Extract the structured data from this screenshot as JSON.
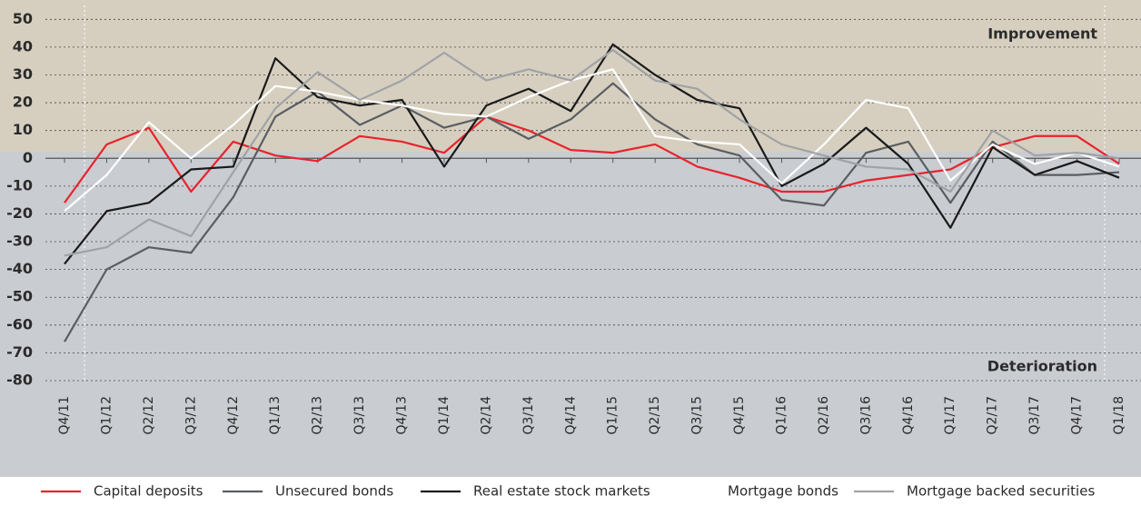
{
  "chart_data": {
    "type": "line",
    "categories": [
      "Q4/11",
      "Q1/12",
      "Q2/12",
      "Q3/12",
      "Q4/12",
      "Q1/13",
      "Q2/13",
      "Q3/13",
      "Q4/13",
      "Q1/14",
      "Q2/14",
      "Q3/14",
      "Q4/14",
      "Q1/15",
      "Q2/15",
      "Q3/15",
      "Q4/15",
      "Q1/16",
      "Q2/16",
      "Q3/16",
      "Q4/16",
      "Q1/17",
      "Q2/17",
      "Q3/17",
      "Q4/17",
      "Q1/18"
    ],
    "series": [
      {
        "name": "Capital deposits",
        "color": "#e8232d",
        "values": [
          -16,
          5,
          11,
          -12,
          6,
          1,
          -1,
          8,
          6,
          2,
          15,
          10,
          3,
          2,
          5,
          -3,
          -7,
          -12,
          -12,
          -8,
          -6,
          -4,
          4,
          8,
          8,
          -2
        ]
      },
      {
        "name": "Unsecured bonds",
        "color": "#5a5d62",
        "values": [
          -66,
          -40,
          -32,
          -34,
          -14,
          15,
          24,
          12,
          19,
          11,
          15,
          7,
          14,
          27,
          14,
          5,
          1,
          -15,
          -17,
          2,
          6,
          -16,
          6,
          -6,
          -6,
          -5
        ]
      },
      {
        "name": "Real estate stock markets",
        "color": "#1a1a1a",
        "values": [
          -38,
          -19,
          -16,
          -4,
          -3,
          36,
          22,
          19,
          21,
          -3,
          19,
          25,
          17,
          41,
          30,
          21,
          18,
          -10,
          -2,
          11,
          -2,
          -25,
          4,
          -6,
          -1,
          -7
        ]
      },
      {
        "name": "Mortgage bonds",
        "color": "#ffffff",
        "values": [
          -19,
          -6,
          13,
          0,
          12,
          26,
          24,
          21,
          19,
          16,
          15,
          22,
          28,
          32,
          8,
          6,
          5,
          -9,
          5,
          21,
          18,
          -8,
          5,
          -2,
          2,
          -3
        ]
      },
      {
        "name": "Mortgage backed securities",
        "color": "#a0a2a5",
        "values": [
          -35,
          -32,
          -22,
          -28,
          -5,
          18,
          31,
          21,
          28,
          38,
          28,
          32,
          28,
          39,
          28,
          25,
          14,
          5,
          1,
          -3,
          -4,
          -12,
          10,
          1,
          2,
          0
        ]
      }
    ],
    "annotations": [
      "Improvement",
      "Deterioration"
    ],
    "ylim": [
      -80,
      55
    ],
    "yticks": [
      -80,
      -70,
      -60,
      -50,
      -40,
      -30,
      -20,
      -10,
      0,
      10,
      20,
      30,
      40,
      50
    ],
    "grid": true
  }
}
